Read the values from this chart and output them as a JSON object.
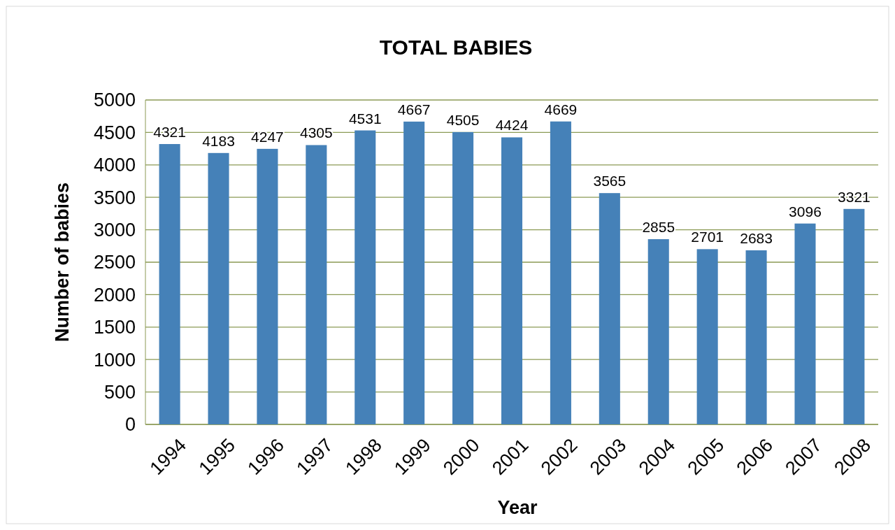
{
  "chart_data": {
    "type": "bar",
    "title": "TOTAL BABIES",
    "xlabel": "Year",
    "ylabel": "Number of babies",
    "categories": [
      "1994",
      "1995",
      "1996",
      "1997",
      "1998",
      "1999",
      "2000",
      "2001",
      "2002",
      "2003",
      "2004",
      "2005",
      "2006",
      "2007",
      "2008"
    ],
    "values": [
      4321,
      4183,
      4247,
      4305,
      4531,
      4667,
      4505,
      4424,
      4669,
      3565,
      2855,
      2701,
      2683,
      3096,
      3321
    ],
    "color": "#4581b8",
    "ylim": [
      0,
      5000
    ],
    "yticks": [
      0,
      500,
      1000,
      1500,
      2000,
      2500,
      3000,
      3500,
      4000,
      4500,
      5000
    ],
    "grid": "y",
    "data_labels": true
  }
}
